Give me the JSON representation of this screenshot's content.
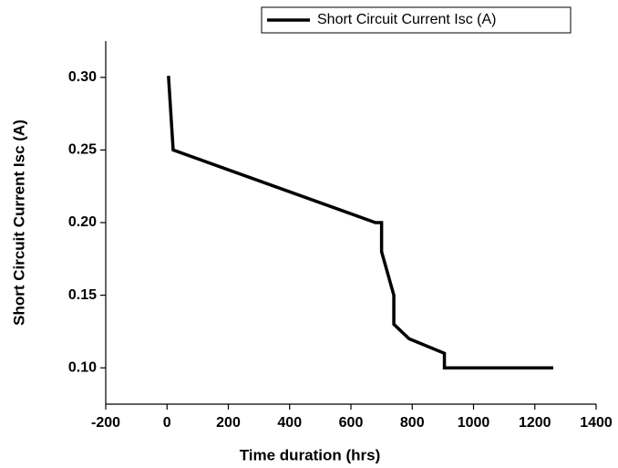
{
  "chart_data": {
    "type": "line",
    "xlabel": "Time duration (hrs)",
    "ylabel": "Short Circuit Current Isc (A)",
    "series": [
      {
        "name": "Short Circuit Current Isc (A)",
        "color": "#000000",
        "x": [
          0,
          5,
          20,
          680,
          700,
          700,
          740,
          740,
          790,
          905,
          905,
          1260
        ],
        "values": [
          0.3,
          0.3,
          0.25,
          0.2,
          0.2,
          0.18,
          0.15,
          0.13,
          0.12,
          0.11,
          0.1,
          0.1
        ]
      }
    ],
    "xlim": [
      -200,
      1400
    ],
    "xticks": [
      -200,
      0,
      200,
      400,
      600,
      800,
      1000,
      1200,
      1400
    ],
    "ylim": [
      0.075,
      0.325
    ],
    "yticks": [
      {
        "value": 0.1,
        "label": "0.10"
      },
      0.15,
      {
        "value": 0.2,
        "label": "0.20"
      },
      0.25,
      {
        "value": 0.3,
        "label": "0.30"
      }
    ],
    "grid": false,
    "legend": "top"
  }
}
